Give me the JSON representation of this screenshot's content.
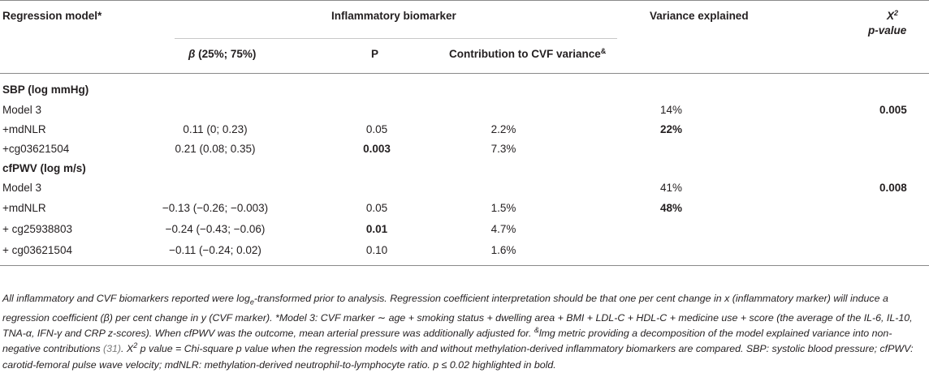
{
  "header": {
    "regression_model": "Regression model*",
    "inflammatory_biomarker": "Inflammatory biomarker",
    "variance_explained": "Variance explained",
    "chi_label": "X",
    "chi_sup": "2",
    "chi_pvalue": "p-value",
    "beta_symbol": "β",
    "beta_range": " (25%; 75%)",
    "p": "P",
    "contribution": "Contribution to CVF variance",
    "contribution_sup": "&"
  },
  "sections": [
    {
      "title": "SBP (log mmHg)",
      "rows": [
        {
          "model": "Model 3",
          "beta": "",
          "p": "",
          "contribution": "",
          "variance": "14%",
          "chi": "0.005"
        },
        {
          "model": "+mdNLR",
          "beta": "0.11 (0; 0.23)",
          "p": "0.05",
          "contribution": "2.2%",
          "variance": "22%",
          "chi": ""
        },
        {
          "model": "+cg03621504",
          "beta": "0.21 (0.08; 0.35)",
          "p": "0.003",
          "contribution": "7.3%",
          "variance": "",
          "chi": ""
        }
      ]
    },
    {
      "title": "cfPWV (log m/s)",
      "rows": [
        {
          "model": "Model 3",
          "beta": "",
          "p": "",
          "contribution": "",
          "variance": "41%",
          "chi": "0.008"
        },
        {
          "model": "+mdNLR",
          "beta": "−0.13 (−0.26; −0.003)",
          "p": "0.05",
          "contribution": "1.5%",
          "variance": "48%",
          "chi": ""
        },
        {
          "model": "+ cg25938803",
          "beta": "−0.24 (−0.43; −0.06)",
          "p": "0.01",
          "contribution": "4.7%",
          "variance": "",
          "chi": ""
        },
        {
          "model": "+ cg03621504",
          "beta": "−0.11 (−0.24; 0.02)",
          "p": "0.10",
          "contribution": "1.6%",
          "variance": "",
          "chi": ""
        }
      ]
    }
  ],
  "footnote": {
    "part1": "All inflammatory and CVF biomarkers reported were log",
    "sub_e": "e",
    "part2": "-transformed prior to analysis. Regression coefficient interpretation should be that one per cent change in x (inflammatory marker) will induce a regression coefficient (β) per cent change in y (CVF marker). *Model 3: CVF marker ∼ age + smoking status + dwelling area + BMI + LDL-C + HDL-C + medicine use + score (the average of the IL-6, IL-10, TNA-α, IFN-γ and CRP z-scores). When cfPWV was the outcome, mean arterial pressure was additionally adjusted for. ",
    "sup_amp": "&",
    "part3": "lmg metric providing a decomposition of the model explained variance into non-negative contributions ",
    "ref": "(31)",
    "part4": ". X",
    "sup_2": "2",
    "part5": " p value = Chi-square p value when the regression models with and without methylation-derived inflammatory biomarkers are compared. SBP: systolic blood pressure; cfPWV: carotid-femoral pulse wave velocity; mdNLR: methylation-derived neutrophil-to-lymphocyte ratio. p ≤ 0.02 highlighted in bold."
  }
}
